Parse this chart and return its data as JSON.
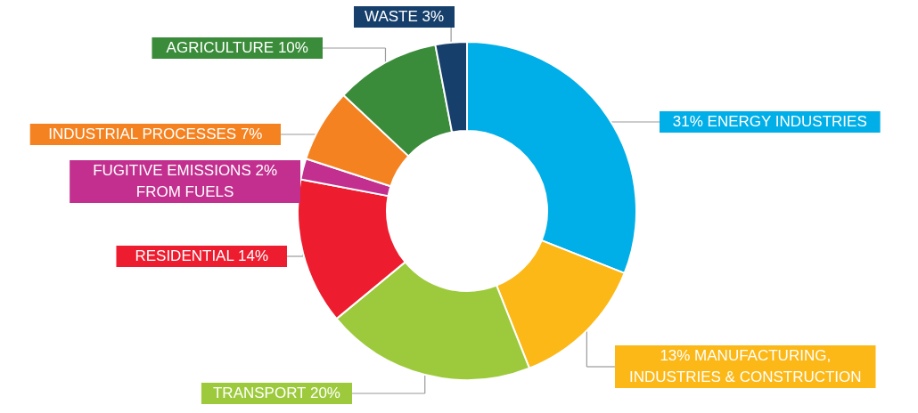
{
  "chart_data": {
    "type": "donut",
    "categories": [
      "31% ENERGY INDUSTRIES",
      "13% MANUFACTURING,\nINDUSTRIES & CONSTRUCTION",
      "TRANSPORT  20%",
      "RESIDENTIAL  14%",
      "FUGITIVE EMISSIONS  2%\nFROM FUELS",
      "INDUSTRIAL PROCESSES  7%",
      "AGRICULTURE  10%",
      "WASTE  3%"
    ],
    "values": [
      31,
      13,
      20,
      14,
      2,
      7,
      10,
      3
    ],
    "colors": [
      "#00aee8",
      "#fbb817",
      "#9dca3c",
      "#ed1c2e",
      "#c22f8f",
      "#f58220",
      "#3a8c3a",
      "#163f6b"
    ]
  }
}
